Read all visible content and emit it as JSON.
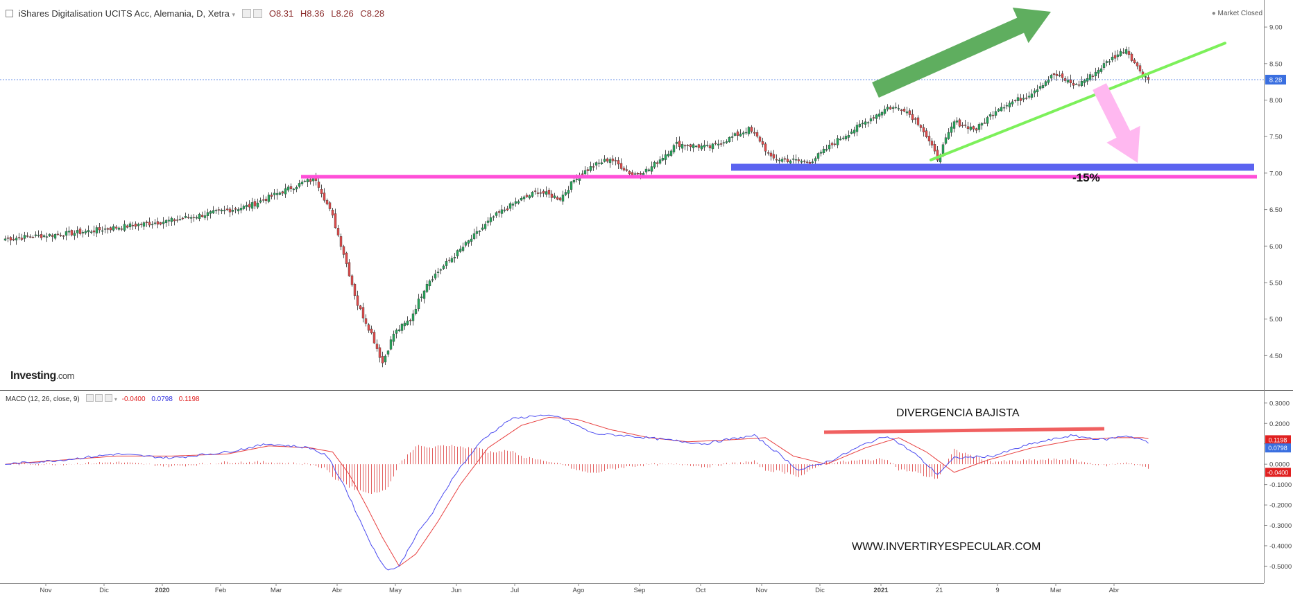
{
  "header": {
    "title": "iShares Digitalisation UCITS Acc, Alemania, D, Xetra",
    "open": "O8.31",
    "high": "H8.36",
    "low": "L8.26",
    "close": "C8.28",
    "market_status": "Market Closed"
  },
  "macd_header": {
    "label": "MACD (12, 26, close, 9)",
    "hist_value": "-0.0400",
    "macd_value": "0.0798",
    "signal_value": "0.1198"
  },
  "brand": {
    "name": "Investing",
    "suffix": ".com"
  },
  "annotations": {
    "percent_label": "-15%",
    "divergence_label": "DIVERGENCIA BAJISTA",
    "website": "WWW.INVERTIRYESPECULAR.COM"
  },
  "colors": {
    "up": "#26a65b",
    "down": "#e04b4b",
    "support_magenta": "#ff4fd8",
    "support_blue": "#5b63f0",
    "trend_green": "#7cf05a",
    "arrow_up": "#5fae5f",
    "arrow_down": "#ffb8f0",
    "macd_line": "#4a4af0",
    "signal_line": "#e84040",
    "price_badge": "#3a6fe0",
    "signal_badge": "#e02020",
    "hist_badge": "#e02020"
  },
  "chart_data": [
    {
      "type": "candlestick",
      "title": "iShares Digitalisation UCITS Acc, Alemania, D, Xetra",
      "x_tick_labels": [
        "Nov",
        "Dic",
        "2020",
        "Feb",
        "Mar",
        "Abr",
        "May",
        "Jun",
        "Jul",
        "Ago",
        "Sep",
        "Oct",
        "Nov",
        "Dic",
        "2021",
        "21",
        "9",
        "Mar",
        "Abr"
      ],
      "y_tick_labels": [
        "9.00",
        "8.50",
        "8.00",
        "7.50",
        "7.00",
        "6.50",
        "6.00",
        "5.50",
        "5.00",
        "4.50"
      ],
      "ylim": [
        4.2,
        9.2
      ],
      "last_price": 8.28,
      "last_price_label": "8.28",
      "close_series": {
        "description_months": [
          "Nov 2019",
          "Dic 2019",
          "Ene 2020",
          "Feb 2020",
          "Mar 2020",
          "Abr 2020",
          "May 2020",
          "Jun 2020",
          "Jul 2020",
          "Ago 2020",
          "Sep 2020",
          "Oct 2020",
          "Nov 2020",
          "Dic 2020",
          "Ene 2021",
          "Feb 2021"
        ],
        "anchors": [
          [
            0,
            6.1
          ],
          [
            25,
            6.18
          ],
          [
            45,
            6.28
          ],
          [
            60,
            6.35
          ],
          [
            70,
            6.42
          ],
          [
            88,
            6.55
          ],
          [
            100,
            6.75
          ],
          [
            108,
            6.88
          ],
          [
            112,
            6.92
          ],
          [
            118,
            6.4
          ],
          [
            122,
            5.9
          ],
          [
            127,
            5.2
          ],
          [
            132,
            4.8
          ],
          [
            136,
            4.4
          ],
          [
            140,
            4.8
          ],
          [
            146,
            5.0
          ],
          [
            152,
            5.5
          ],
          [
            160,
            5.8
          ],
          [
            168,
            6.1
          ],
          [
            176,
            6.4
          ],
          [
            184,
            6.6
          ],
          [
            192,
            6.75
          ],
          [
            200,
            6.65
          ],
          [
            206,
            6.95
          ],
          [
            212,
            7.1
          ],
          [
            218,
            7.2
          ],
          [
            226,
            6.98
          ],
          [
            232,
            7.05
          ],
          [
            242,
            7.4
          ],
          [
            254,
            7.35
          ],
          [
            268,
            7.6
          ],
          [
            272,
            7.45
          ],
          [
            276,
            7.2
          ],
          [
            282,
            7.18
          ],
          [
            290,
            7.15
          ],
          [
            300,
            7.45
          ],
          [
            310,
            7.7
          ],
          [
            318,
            7.9
          ],
          [
            324,
            7.88
          ],
          [
            330,
            7.65
          ],
          [
            336,
            7.2
          ],
          [
            342,
            7.7
          ],
          [
            350,
            7.6
          ],
          [
            358,
            7.9
          ],
          [
            368,
            8.05
          ],
          [
            378,
            8.35
          ],
          [
            386,
            8.2
          ],
          [
            392,
            8.35
          ],
          [
            398,
            8.55
          ],
          [
            404,
            8.7
          ],
          [
            408,
            8.45
          ],
          [
            412,
            8.28
          ]
        ]
      },
      "support_levels": [
        6.95,
        7.08
      ],
      "trendline": [
        [
          334,
          7.18
        ],
        [
          440,
          8.78
        ]
      ]
    },
    {
      "type": "line",
      "title": "MACD (12, 26, close, 9)",
      "y_tick_labels": [
        "0.3000",
        "0.2000",
        "0.1000",
        "0.0000",
        "-0.1000",
        "-0.2000",
        "-0.3000",
        "-0.4000",
        "-0.5000"
      ],
      "ylim": [
        -0.57,
        0.33
      ],
      "series": [
        {
          "name": "MACD",
          "points": [
            [
              0,
              0.0
            ],
            [
              20,
              0.02
            ],
            [
              40,
              0.05
            ],
            [
              60,
              0.03
            ],
            [
              80,
              0.06
            ],
            [
              95,
              0.1
            ],
            [
              110,
              0.08
            ],
            [
              116,
              0.04
            ],
            [
              122,
              -0.1
            ],
            [
              128,
              -0.28
            ],
            [
              134,
              -0.45
            ],
            [
              138,
              -0.52
            ],
            [
              142,
              -0.5
            ],
            [
              148,
              -0.35
            ],
            [
              154,
              -0.24
            ],
            [
              162,
              -0.05
            ],
            [
              172,
              0.12
            ],
            [
              182,
              0.22
            ],
            [
              192,
              0.24
            ],
            [
              200,
              0.23
            ],
            [
              212,
              0.15
            ],
            [
              224,
              0.14
            ],
            [
              238,
              0.12
            ],
            [
              252,
              0.1
            ],
            [
              260,
              0.12
            ],
            [
              270,
              0.14
            ],
            [
              278,
              0.06
            ],
            [
              286,
              -0.03
            ],
            [
              298,
              0.02
            ],
            [
              310,
              0.1
            ],
            [
              318,
              0.14
            ],
            [
              328,
              0.05
            ],
            [
              336,
              -0.05
            ],
            [
              342,
              0.03
            ],
            [
              356,
              0.04
            ],
            [
              370,
              0.1
            ],
            [
              384,
              0.14
            ],
            [
              396,
              0.12
            ],
            [
              404,
              0.14
            ],
            [
              410,
              0.12
            ],
            [
              414,
              0.08
            ]
          ]
        },
        {
          "name": "Signal",
          "points": [
            [
              0,
              0.0
            ],
            [
              20,
              0.02
            ],
            [
              40,
              0.04
            ],
            [
              60,
              0.04
            ],
            [
              80,
              0.05
            ],
            [
              95,
              0.09
            ],
            [
              110,
              0.08
            ],
            [
              118,
              0.06
            ],
            [
              124,
              -0.05
            ],
            [
              130,
              -0.2
            ],
            [
              136,
              -0.36
            ],
            [
              142,
              -0.5
            ],
            [
              148,
              -0.44
            ],
            [
              156,
              -0.28
            ],
            [
              164,
              -0.1
            ],
            [
              174,
              0.08
            ],
            [
              186,
              0.19
            ],
            [
              196,
              0.23
            ],
            [
              206,
              0.22
            ],
            [
              218,
              0.17
            ],
            [
              232,
              0.13
            ],
            [
              246,
              0.11
            ],
            [
              262,
              0.12
            ],
            [
              274,
              0.13
            ],
            [
              284,
              0.04
            ],
            [
              296,
              0.0
            ],
            [
              310,
              0.08
            ],
            [
              322,
              0.13
            ],
            [
              332,
              0.06
            ],
            [
              342,
              -0.04
            ],
            [
              354,
              0.02
            ],
            [
              370,
              0.08
            ],
            [
              386,
              0.12
            ],
            [
              400,
              0.13
            ],
            [
              410,
              0.13
            ],
            [
              414,
              0.12
            ]
          ]
        }
      ],
      "divergence_line": [
        [
          0.1198,
          0.1198
        ]
      ]
    }
  ]
}
